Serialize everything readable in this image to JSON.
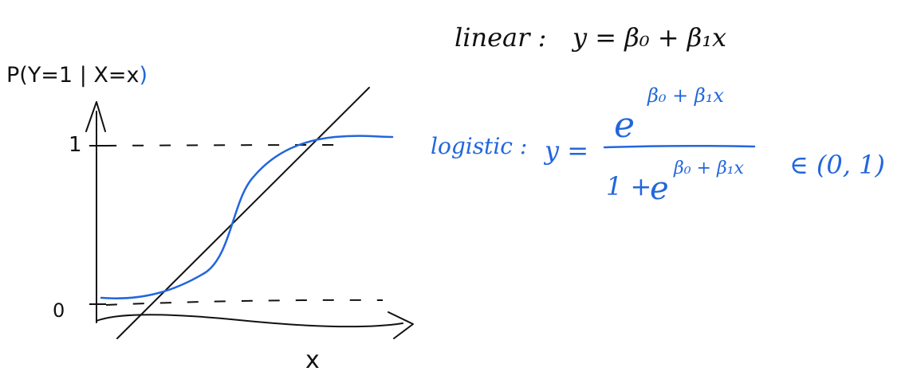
{
  "colors": {
    "ink": "#111111",
    "blue": "#2266dd"
  },
  "plot": {
    "y_label_prefix": "P(Y=1 | X=x",
    "y_label_suffix": ")",
    "tick_one": "1",
    "tick_zero": "0",
    "x_label": "x"
  },
  "linear": {
    "label": "linear :",
    "formula": "y = β₀ + β₁x"
  },
  "logistic": {
    "label": "logistic :",
    "y_eq": "y =",
    "numerator_base": "e",
    "numerator_exp": "β₀ + β₁x",
    "denominator_one": "1 +",
    "denominator_base": "e",
    "denominator_exp": "β₀ + β₁x",
    "range": "∈ (0, 1)"
  }
}
